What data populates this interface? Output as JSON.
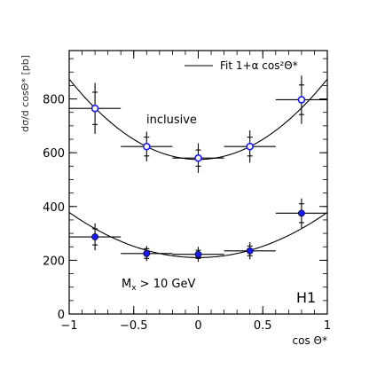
{
  "chart_data": {
    "type": "scatter",
    "xlabel": "cos Θ*",
    "ylabel": "dσ/d cosΘ* [pb]",
    "xlim": [
      -1,
      1
    ],
    "ylim": [
      0,
      980
    ],
    "xticks": [
      -1,
      -0.5,
      0,
      0.5,
      1
    ],
    "xtick_labels": [
      "−1",
      "−0.5",
      "0",
      "0.5",
      "1"
    ],
    "yticks": [
      0,
      200,
      400,
      600,
      800
    ],
    "ytick_labels": [
      "0",
      "200",
      "400",
      "600",
      "800"
    ],
    "legend": {
      "label": "Fit 1+α cos²Θ*",
      "placement": "top-right"
    },
    "experiment_label": "H1",
    "grid": false,
    "series": [
      {
        "label": "inclusive",
        "marker": "open-circle",
        "color": "#1a1aff",
        "x": [
          -0.8,
          -0.4,
          0.0,
          0.4,
          0.8
        ],
        "xerr": [
          0.2,
          0.2,
          0.2,
          0.2,
          0.2
        ],
        "y": [
          765,
          623,
          580,
          623,
          797
        ],
        "yerr_inner": [
          60,
          35,
          30,
          35,
          55
        ],
        "yerr_outer": [
          95,
          55,
          55,
          60,
          90
        ],
        "fit": {
          "a": 575,
          "alpha": 0.52
        }
      },
      {
        "label": "M",
        "label_sub": "x",
        "label_rest": " > 10 GeV",
        "marker": "filled-circle",
        "color": "#1a1aff",
        "x": [
          -0.8,
          -0.4,
          0.0,
          0.4,
          0.8
        ],
        "xerr": [
          0.2,
          0.2,
          0.2,
          0.2,
          0.2
        ],
        "y": [
          287,
          225,
          222,
          235,
          375
        ],
        "yerr_inner": [
          30,
          18,
          15,
          18,
          35
        ],
        "yerr_outer": [
          50,
          28,
          28,
          32,
          55
        ],
        "fit": {
          "a": 210,
          "alpha": 0.8
        }
      }
    ]
  }
}
